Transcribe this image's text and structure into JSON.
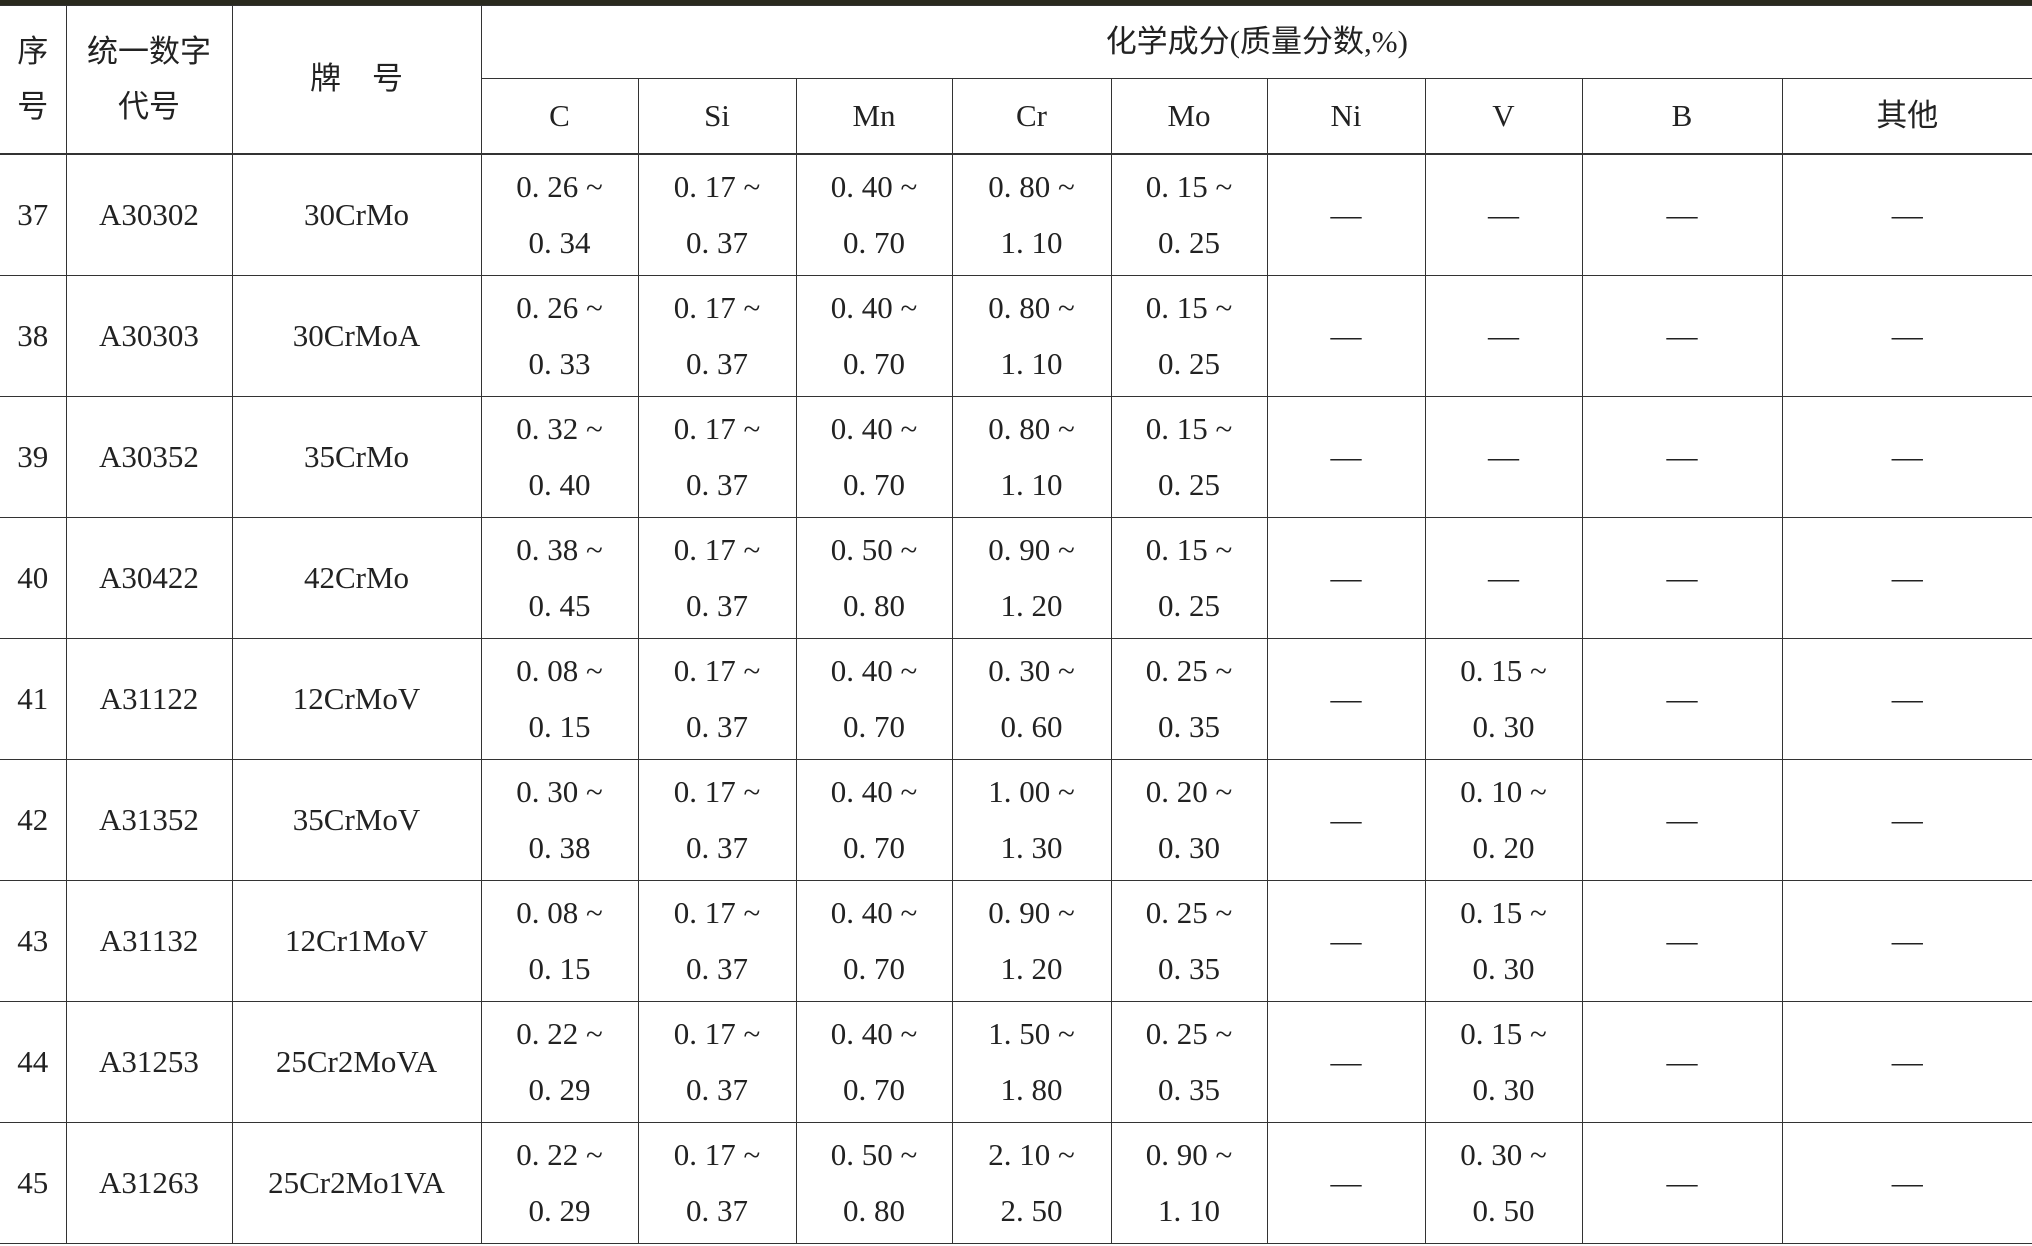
{
  "header": {
    "seq": [
      "序",
      "号"
    ],
    "code": [
      "统一数字",
      "代号"
    ],
    "grade": "牌　号",
    "composition": "化学成分(质量分数,%)",
    "elements": [
      "C",
      "Si",
      "Mn",
      "Cr",
      "Mo",
      "Ni",
      "V",
      "B",
      "其他"
    ]
  },
  "rows": [
    {
      "seq": "37",
      "code": "A30302",
      "grade": "30CrMo",
      "values": [
        [
          "0. 26 ~",
          "0. 34"
        ],
        [
          "0. 17 ~",
          "0. 37"
        ],
        [
          "0. 40 ~",
          "0. 70"
        ],
        [
          "0. 80 ~",
          "1. 10"
        ],
        [
          "0. 15 ~",
          "0. 25"
        ],
        "—",
        "—",
        "—",
        "—"
      ]
    },
    {
      "seq": "38",
      "code": "A30303",
      "grade": "30CrMoA",
      "values": [
        [
          "0. 26 ~",
          "0. 33"
        ],
        [
          "0. 17 ~",
          "0. 37"
        ],
        [
          "0. 40 ~",
          "0. 70"
        ],
        [
          "0. 80 ~",
          "1. 10"
        ],
        [
          "0. 15 ~",
          "0. 25"
        ],
        "—",
        "—",
        "—",
        "—"
      ]
    },
    {
      "seq": "39",
      "code": "A30352",
      "grade": "35CrMo",
      "values": [
        [
          "0. 32 ~",
          "0. 40"
        ],
        [
          "0. 17 ~",
          "0. 37"
        ],
        [
          "0. 40 ~",
          "0. 70"
        ],
        [
          "0. 80 ~",
          "1. 10"
        ],
        [
          "0. 15 ~",
          "0. 25"
        ],
        "—",
        "—",
        "—",
        "—"
      ]
    },
    {
      "seq": "40",
      "code": "A30422",
      "grade": "42CrMo",
      "values": [
        [
          "0. 38 ~",
          "0. 45"
        ],
        [
          "0. 17 ~",
          "0. 37"
        ],
        [
          "0. 50 ~",
          "0. 80"
        ],
        [
          "0. 90 ~",
          "1. 20"
        ],
        [
          "0. 15 ~",
          "0. 25"
        ],
        "—",
        "—",
        "—",
        "—"
      ]
    },
    {
      "seq": "41",
      "code": "A31122",
      "grade": "12CrMoV",
      "values": [
        [
          "0. 08 ~",
          "0. 15"
        ],
        [
          "0. 17 ~",
          "0. 37"
        ],
        [
          "0. 40 ~",
          "0. 70"
        ],
        [
          "0. 30 ~",
          "0. 60"
        ],
        [
          "0. 25 ~",
          "0. 35"
        ],
        "—",
        [
          "0. 15 ~",
          "0. 30"
        ],
        "—",
        "—"
      ]
    },
    {
      "seq": "42",
      "code": "A31352",
      "grade": "35CrMoV",
      "values": [
        [
          "0. 30 ~",
          "0. 38"
        ],
        [
          "0. 17 ~",
          "0. 37"
        ],
        [
          "0. 40 ~",
          "0. 70"
        ],
        [
          "1. 00 ~",
          "1. 30"
        ],
        [
          "0. 20 ~",
          "0. 30"
        ],
        "—",
        [
          "0. 10 ~",
          "0. 20"
        ],
        "—",
        "—"
      ]
    },
    {
      "seq": "43",
      "code": "A31132",
      "grade": "12Cr1MoV",
      "values": [
        [
          "0. 08 ~",
          "0. 15"
        ],
        [
          "0. 17 ~",
          "0. 37"
        ],
        [
          "0. 40 ~",
          "0. 70"
        ],
        [
          "0. 90 ~",
          "1. 20"
        ],
        [
          "0. 25 ~",
          "0. 35"
        ],
        "—",
        [
          "0. 15 ~",
          "0. 30"
        ],
        "—",
        "—"
      ]
    },
    {
      "seq": "44",
      "code": "A31253",
      "grade": "25Cr2MoVA",
      "values": [
        [
          "0. 22 ~",
          "0. 29"
        ],
        [
          "0. 17 ~",
          "0. 37"
        ],
        [
          "0. 40 ~",
          "0. 70"
        ],
        [
          "1. 50 ~",
          "1. 80"
        ],
        [
          "0. 25 ~",
          "0. 35"
        ],
        "—",
        [
          "0. 15 ~",
          "0. 30"
        ],
        "—",
        "—"
      ]
    },
    {
      "seq": "45",
      "code": "A31263",
      "grade": "25Cr2Mo1VA",
      "values": [
        [
          "0. 22 ~",
          "0. 29"
        ],
        [
          "0. 17 ~",
          "0. 37"
        ],
        [
          "0. 50 ~",
          "0. 80"
        ],
        [
          "2. 10 ~",
          "2. 50"
        ],
        [
          "0. 90 ~",
          "1. 10"
        ],
        "—",
        [
          "0. 30 ~",
          "0. 50"
        ],
        "—",
        "—"
      ]
    }
  ]
}
